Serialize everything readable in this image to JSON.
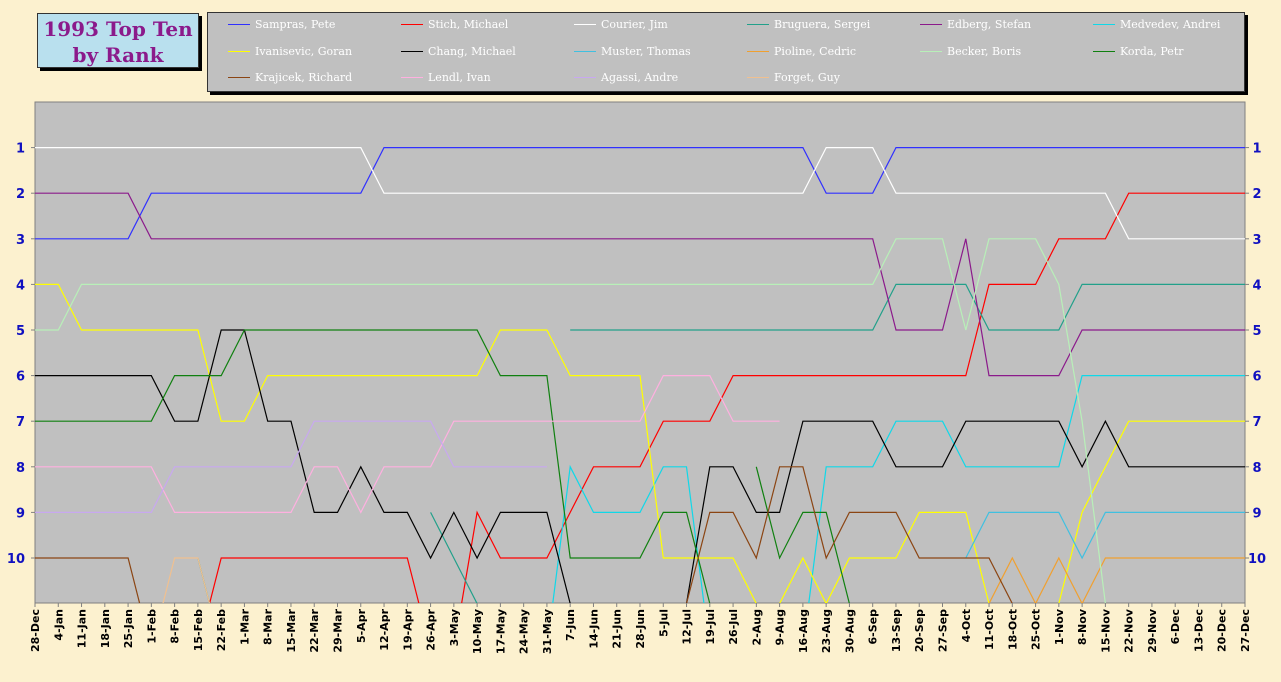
{
  "title_lines": [
    "1993 Top Ten",
    "by Rank"
  ],
  "chart_data": {
    "type": "line",
    "title": "1993 Top Ten by Rank",
    "ylabel": "",
    "xlabel": "",
    "y_ticks": [
      "1",
      "2",
      "3",
      "4",
      "5",
      "6",
      "7",
      "8",
      "9",
      "10"
    ],
    "ylim": [
      11,
      0
    ],
    "y_axis_inverted": true,
    "categories": [
      "28-Dec",
      "4-Jan",
      "11-Jan",
      "18-Jan",
      "25-Jan",
      "1-Feb",
      "8-Feb",
      "15-Feb",
      "22-Feb",
      "1-Mar",
      "8-Mar",
      "15-Mar",
      "22-Mar",
      "29-Mar",
      "5-Apr",
      "12-Apr",
      "19-Apr",
      "26-Apr",
      "3-May",
      "10-May",
      "17-May",
      "24-May",
      "31-May",
      "7-Jun",
      "14-Jun",
      "21-Jun",
      "28-Jun",
      "5-Jul",
      "12-Jul",
      "19-Jul",
      "26-Jul",
      "2-Aug",
      "9-Aug",
      "16-Aug",
      "23-Aug",
      "30-Aug",
      "6-Sep",
      "13-Sep",
      "20-Sep",
      "27-Sep",
      "4-Oct",
      "11-Oct",
      "18-Oct",
      "25-Oct",
      "1-Nov",
      "8-Nov",
      "15-Nov",
      "22-Nov",
      "29-Nov",
      "6-Dec",
      "13-Dec",
      "20-Dec",
      "27-Dec"
    ],
    "grid": false,
    "legend_position": "top",
    "background": "#c0c0c0",
    "series": [
      {
        "name": "Sampras, Pete",
        "color": "#3030ff",
        "values": [
          3,
          3,
          3,
          3,
          3,
          2,
          2,
          2,
          2,
          2,
          2,
          2,
          2,
          2,
          2,
          1,
          1,
          1,
          1,
          1,
          1,
          1,
          1,
          1,
          1,
          1,
          1,
          1,
          1,
          1,
          1,
          1,
          1,
          1,
          2,
          2,
          2,
          1,
          1,
          1,
          1,
          1,
          1,
          1,
          1,
          1,
          1,
          1,
          1,
          1,
          1,
          1,
          1
        ]
      },
      {
        "name": "Stich, Michael",
        "color": "#ff0000",
        "values": [
          null,
          null,
          null,
          null,
          null,
          null,
          null,
          12,
          10,
          10,
          10,
          10,
          10,
          10,
          10,
          10,
          10,
          12,
          12,
          9,
          10,
          10,
          10,
          9,
          8,
          8,
          8,
          7,
          7,
          7,
          6,
          6,
          6,
          6,
          6,
          6,
          6,
          6,
          6,
          6,
          6,
          4,
          4,
          4,
          3,
          3,
          3,
          2,
          2,
          2,
          2,
          2,
          2
        ]
      },
      {
        "name": "Courier, Jim",
        "color": "#ffffff",
        "values": [
          1,
          1,
          1,
          1,
          1,
          1,
          1,
          1,
          1,
          1,
          1,
          1,
          1,
          1,
          1,
          2,
          2,
          2,
          2,
          2,
          2,
          2,
          2,
          2,
          2,
          2,
          2,
          2,
          2,
          2,
          2,
          2,
          2,
          2,
          1,
          1,
          1,
          2,
          2,
          2,
          2,
          2,
          2,
          2,
          2,
          2,
          2,
          3,
          3,
          3,
          3,
          3,
          3
        ]
      },
      {
        "name": "Bruguera, Sergei",
        "color": "#22a08a",
        "values": [
          null,
          null,
          null,
          null,
          null,
          null,
          null,
          10,
          12,
          null,
          null,
          null,
          null,
          null,
          null,
          null,
          null,
          9,
          10,
          11,
          null,
          null,
          null,
          5,
          5,
          5,
          5,
          5,
          5,
          5,
          5,
          5,
          5,
          5,
          5,
          5,
          5,
          4,
          4,
          4,
          4,
          5,
          5,
          5,
          5,
          4,
          4,
          4,
          4,
          4,
          4,
          4,
          4
        ]
      },
      {
        "name": "Edberg, Stefan",
        "color": "#8b1a8b",
        "values": [
          2,
          2,
          2,
          2,
          2,
          3,
          3,
          3,
          3,
          3,
          3,
          3,
          3,
          3,
          3,
          3,
          3,
          3,
          3,
          3,
          3,
          3,
          3,
          3,
          3,
          3,
          3,
          3,
          3,
          3,
          3,
          3,
          3,
          3,
          3,
          3,
          3,
          5,
          5,
          5,
          3,
          6,
          6,
          6,
          6,
          5,
          5,
          5,
          5,
          5,
          5,
          5,
          5
        ]
      },
      {
        "name": "Medvedev, Andrei",
        "color": "#10d8e8",
        "values": [
          null,
          null,
          null,
          null,
          null,
          null,
          null,
          null,
          null,
          null,
          null,
          null,
          null,
          null,
          null,
          null,
          null,
          null,
          null,
          null,
          null,
          null,
          12,
          8,
          9,
          9,
          9,
          8,
          8,
          12,
          null,
          null,
          null,
          12,
          8,
          8,
          8,
          7,
          7,
          7,
          8,
          8,
          8,
          8,
          8,
          6,
          6,
          6,
          6,
          6,
          6,
          6,
          6
        ]
      },
      {
        "name": "Ivanisevic, Goran",
        "color": "#ffff00",
        "values": [
          4,
          4,
          5,
          5,
          5,
          5,
          5,
          5,
          7,
          7,
          6,
          6,
          6,
          6,
          6,
          6,
          6,
          6,
          6,
          6,
          5,
          5,
          5,
          6,
          6,
          6,
          6,
          10,
          10,
          10,
          10,
          11,
          11,
          10,
          11,
          10,
          10,
          10,
          9,
          9,
          9,
          11,
          null,
          null,
          11,
          9,
          8,
          7,
          7,
          7,
          7,
          7,
          7
        ]
      },
      {
        "name": "Chang, Michael",
        "color": "#000000",
        "values": [
          6,
          6,
          6,
          6,
          6,
          6,
          7,
          7,
          5,
          5,
          7,
          7,
          9,
          9,
          8,
          9,
          9,
          10,
          9,
          10,
          9,
          9,
          9,
          11,
          null,
          null,
          null,
          null,
          11,
          8,
          8,
          9,
          9,
          7,
          7,
          7,
          7,
          8,
          8,
          8,
          7,
          7,
          7,
          7,
          7,
          8,
          7,
          8,
          8,
          8,
          8,
          8,
          8
        ]
      },
      {
        "name": "Muster, Thomas",
        "color": "#40c0e0",
        "values": [
          null,
          null,
          null,
          null,
          null,
          null,
          null,
          null,
          null,
          null,
          null,
          null,
          null,
          null,
          null,
          null,
          null,
          null,
          null,
          null,
          null,
          null,
          null,
          null,
          null,
          null,
          null,
          null,
          null,
          null,
          null,
          null,
          null,
          null,
          null,
          null,
          null,
          null,
          null,
          null,
          10,
          9,
          9,
          9,
          9,
          10,
          9,
          9,
          9,
          9,
          9,
          9,
          9
        ]
      },
      {
        "name": "Pioline, Cedric",
        "color": "#f0a030",
        "values": [
          null,
          null,
          null,
          null,
          null,
          null,
          null,
          null,
          null,
          null,
          null,
          null,
          null,
          null,
          null,
          null,
          null,
          null,
          null,
          null,
          null,
          null,
          null,
          null,
          null,
          null,
          null,
          null,
          null,
          null,
          null,
          null,
          null,
          null,
          null,
          null,
          null,
          null,
          null,
          null,
          null,
          11,
          10,
          11,
          10,
          11,
          10,
          10,
          10,
          10,
          10,
          10,
          10
        ]
      },
      {
        "name": "Becker, Boris",
        "color": "#b8f0b8",
        "values": [
          5,
          5,
          4,
          4,
          4,
          4,
          4,
          4,
          4,
          4,
          4,
          4,
          4,
          4,
          4,
          4,
          4,
          4,
          4,
          4,
          4,
          4,
          4,
          4,
          4,
          4,
          4,
          4,
          4,
          4,
          4,
          4,
          4,
          4,
          4,
          4,
          4,
          3,
          3,
          3,
          5,
          3,
          3,
          3,
          4,
          7,
          11,
          null,
          null,
          null,
          null,
          null,
          null
        ]
      },
      {
        "name": "Korda, Petr",
        "color": "#108010",
        "values": [
          7,
          7,
          7,
          7,
          7,
          7,
          6,
          6,
          6,
          5,
          5,
          5,
          5,
          5,
          5,
          5,
          5,
          5,
          5,
          5,
          6,
          6,
          6,
          10,
          10,
          10,
          10,
          9,
          9,
          11,
          null,
          8,
          10,
          9,
          9,
          11,
          null,
          null,
          null,
          null,
          null,
          null,
          null,
          null,
          null,
          null,
          null,
          null,
          null,
          null,
          null,
          null,
          null
        ]
      },
      {
        "name": "Krajicek, Richard",
        "color": "#8b4513",
        "values": [
          10,
          10,
          10,
          10,
          10,
          12,
          null,
          null,
          null,
          null,
          null,
          null,
          null,
          null,
          null,
          null,
          null,
          null,
          null,
          null,
          null,
          null,
          null,
          null,
          null,
          null,
          null,
          null,
          11,
          9,
          9,
          10,
          8,
          8,
          10,
          9,
          9,
          9,
          10,
          10,
          10,
          10,
          11,
          null,
          null,
          null,
          null,
          null,
          null,
          null,
          null,
          null,
          null
        ]
      },
      {
        "name": "Lendl, Ivan",
        "color": "#ffb0e0",
        "values": [
          8,
          8,
          8,
          8,
          8,
          8,
          9,
          9,
          9,
          9,
          9,
          9,
          8,
          8,
          9,
          8,
          8,
          8,
          7,
          7,
          7,
          7,
          7,
          7,
          7,
          7,
          7,
          6,
          6,
          6,
          7,
          7,
          7,
          null,
          null,
          null,
          null,
          null,
          null,
          null,
          null,
          null,
          null,
          null,
          null,
          null,
          null,
          null,
          null,
          null,
          null,
          null,
          null
        ]
      },
      {
        "name": "Agassi, Andre",
        "color": "#c8a8f0",
        "values": [
          9,
          9,
          9,
          9,
          9,
          9,
          8,
          8,
          8,
          8,
          8,
          8,
          7,
          7,
          7,
          7,
          7,
          7,
          8,
          8,
          8,
          8,
          8,
          null,
          null,
          null,
          null,
          null,
          null,
          null,
          null,
          null,
          null,
          null,
          null,
          null,
          null,
          null,
          null,
          null,
          null,
          null,
          null,
          null,
          null,
          null,
          null,
          null,
          null,
          null,
          null,
          null,
          null
        ]
      },
      {
        "name": "Forget, Guy",
        "color": "#f0c090",
        "values": [
          null,
          null,
          null,
          null,
          null,
          12,
          10,
          10,
          12,
          null,
          null,
          null,
          null,
          null,
          null,
          null,
          null,
          null,
          null,
          null,
          null,
          null,
          null,
          null,
          null,
          null,
          null,
          null,
          null,
          null,
          null,
          null,
          null,
          null,
          null,
          null,
          null,
          null,
          null,
          null,
          null,
          null,
          null,
          null,
          null,
          null,
          null,
          null,
          null,
          null,
          null,
          null,
          null
        ]
      }
    ]
  }
}
